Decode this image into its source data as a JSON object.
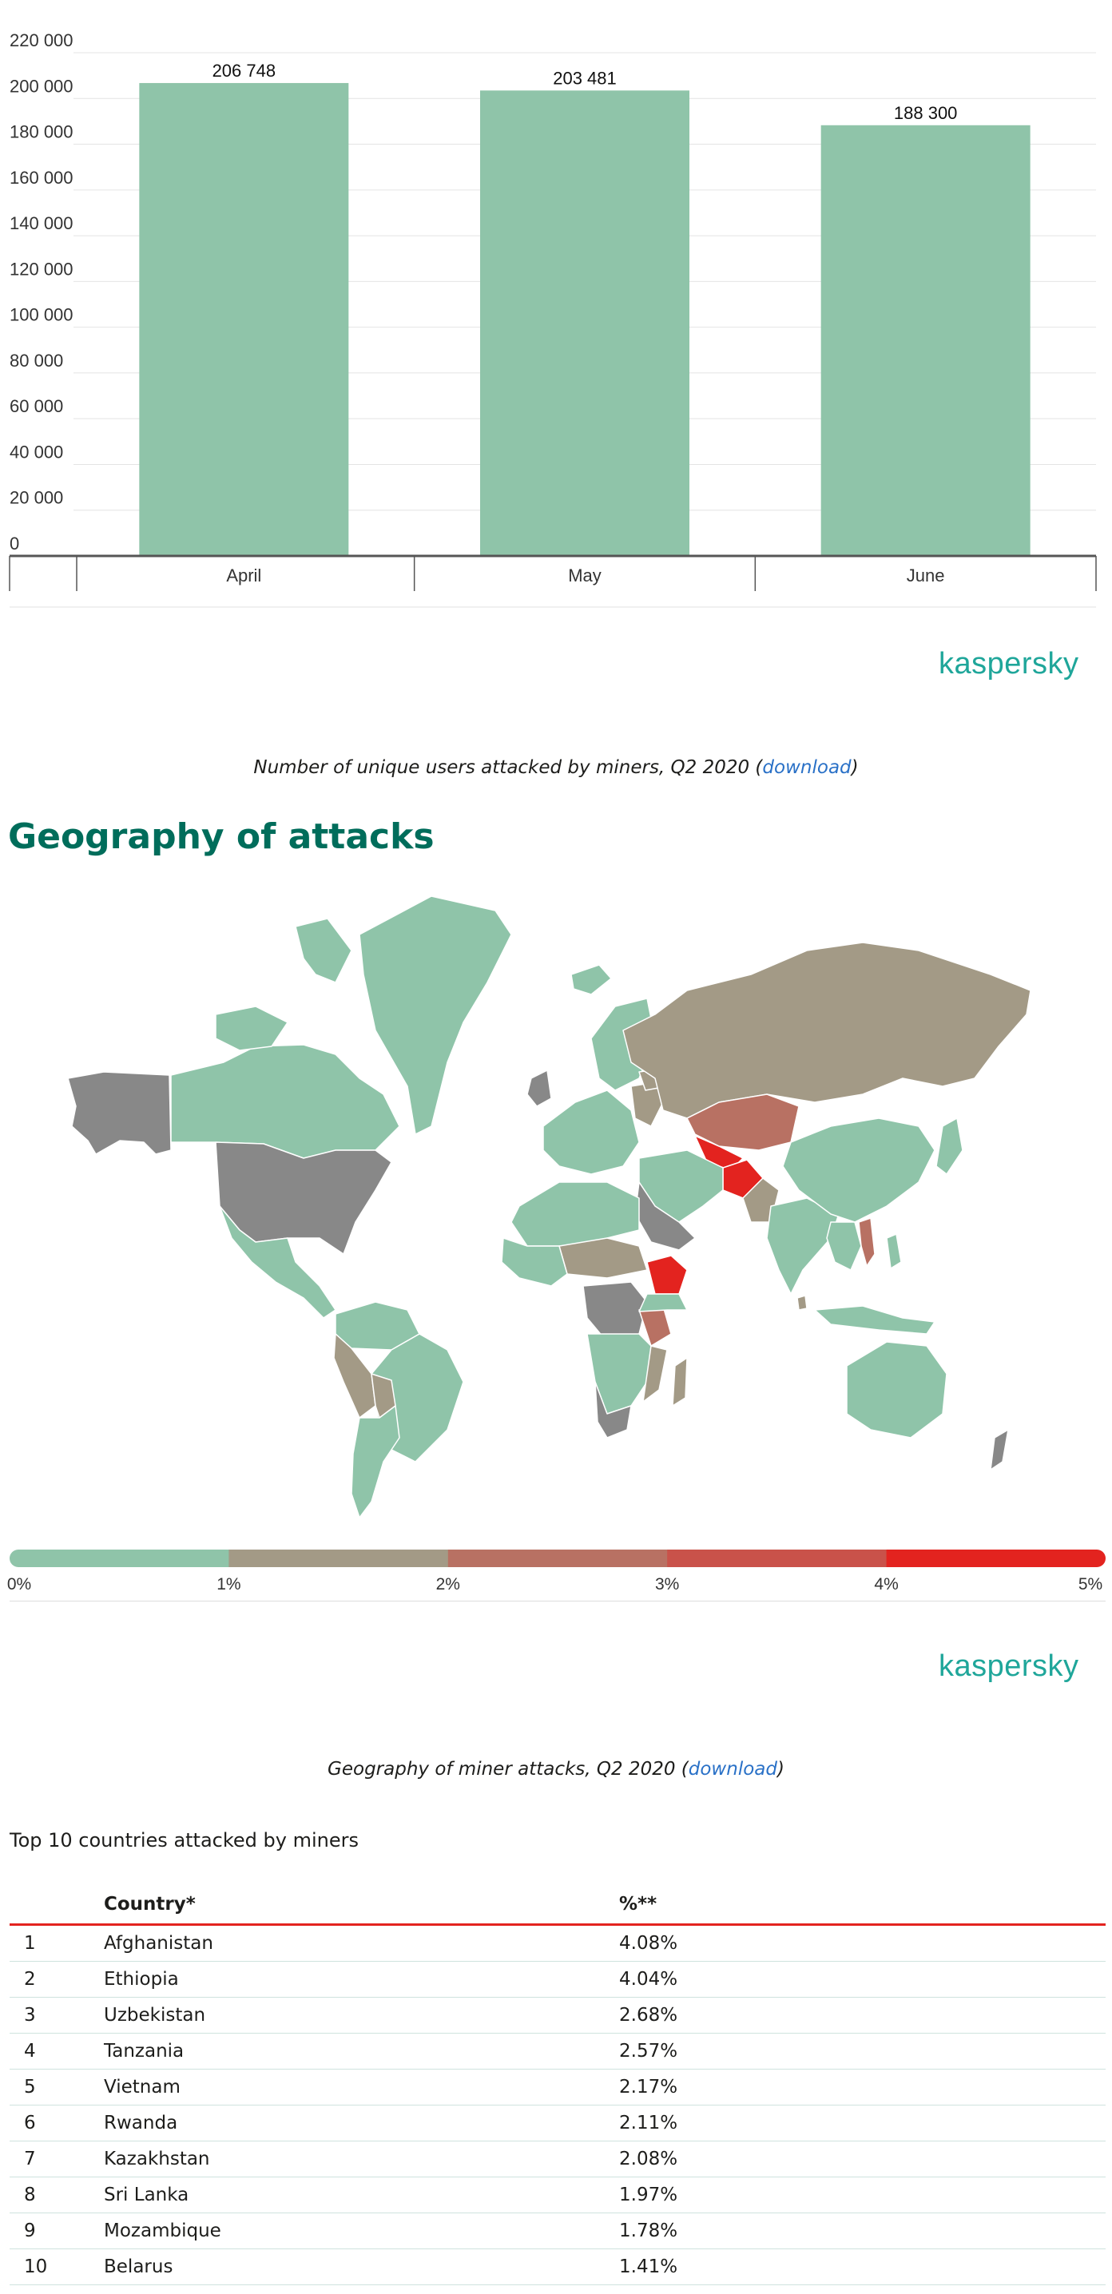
{
  "chart_data": {
    "type": "bar",
    "categories": [
      "April",
      "May",
      "June"
    ],
    "values": [
      206748,
      203481,
      188300
    ],
    "value_labels": [
      "206 748",
      "203 481",
      "188 300"
    ],
    "ylim": [
      0,
      220000
    ],
    "yticks": [
      "0",
      "20 000",
      "40 000",
      "60 000",
      "80 000",
      "100 000",
      "120 000",
      "140 000",
      "160 000",
      "180 000",
      "200 000",
      "220 000"
    ],
    "grid": true,
    "title": "",
    "xlabel": "",
    "ylabel": "",
    "bar_color": "#8fc4a9"
  },
  "brand": {
    "logo_text": "kaspersky",
    "color": "#1fa69a"
  },
  "chart_caption": {
    "text": "Number of unique users attacked by miners, Q2 2020 (",
    "link": "download",
    "suffix": ")"
  },
  "section_heading": "Geography of attacks",
  "map": {
    "colors": {
      "low": "#8fc4a9",
      "mid": "#a39a86",
      "high": "#b87163",
      "top": "#e3231f",
      "no_data": "#888888"
    }
  },
  "legend": {
    "colors": [
      "#8fc4a9",
      "#a39a86",
      "#b87163",
      "#c9524a",
      "#e3231f"
    ],
    "ticks": [
      "0%",
      "1%",
      "2%",
      "3%",
      "4%",
      "5%"
    ]
  },
  "map_caption": {
    "text": "Geography of miner attacks, Q2 2020 (",
    "link": "download",
    "suffix": ")"
  },
  "table": {
    "title": "Top 10 countries attacked by miners",
    "headers": [
      "",
      "Country*",
      "%**"
    ],
    "rows": [
      [
        "1",
        "Afghanistan",
        "4.08%"
      ],
      [
        "2",
        "Ethiopia",
        "4.04%"
      ],
      [
        "3",
        "Uzbekistan",
        "2.68%"
      ],
      [
        "4",
        "Tanzania",
        "2.57%"
      ],
      [
        "5",
        "Vietnam",
        "2.17%"
      ],
      [
        "6",
        "Rwanda",
        "2.11%"
      ],
      [
        "7",
        "Kazakhstan",
        "2.08%"
      ],
      [
        "8",
        "Sri Lanka",
        "1.97%"
      ],
      [
        "9",
        "Mozambique",
        "1.78%"
      ],
      [
        "10",
        "Belarus",
        "1.41%"
      ]
    ]
  }
}
